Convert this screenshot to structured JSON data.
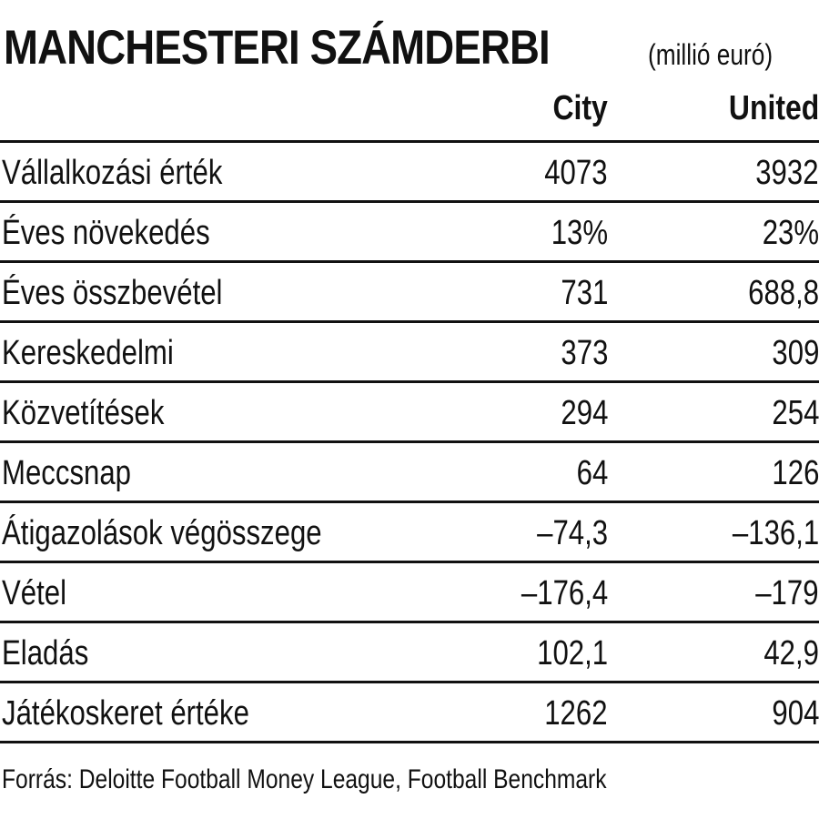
{
  "chart_data": {
    "type": "table",
    "title": "MANCHESTERI SZÁMDERBI",
    "unit": "(millió euró)",
    "columns": [
      "City",
      "United"
    ],
    "rows": [
      {
        "label": "Vállalkozási érték",
        "values": [
          "4073",
          "3932"
        ]
      },
      {
        "label": "Éves növekedés",
        "values": [
          "13%",
          "23%"
        ]
      },
      {
        "label": "Éves összbevétel",
        "values": [
          "731",
          "688,8"
        ]
      },
      {
        "label": "Kereskedelmi",
        "values": [
          "373",
          "309"
        ]
      },
      {
        "label": "Közvetítések",
        "values": [
          "294",
          "254"
        ]
      },
      {
        "label": "Meccsnap",
        "values": [
          "64",
          "126"
        ]
      },
      {
        "label": "Átigazolások végösszege",
        "values": [
          "–74,3",
          "–136,1"
        ]
      },
      {
        "label": "Vétel",
        "values": [
          "–176,4",
          "–179"
        ]
      },
      {
        "label": "Eladás",
        "values": [
          "102,1",
          "42,9"
        ]
      },
      {
        "label": "Játékoskeret értéke",
        "values": [
          "1262",
          "904"
        ]
      }
    ],
    "source": "Forrás: Deloitte Football Money League, Football Benchmark"
  }
}
